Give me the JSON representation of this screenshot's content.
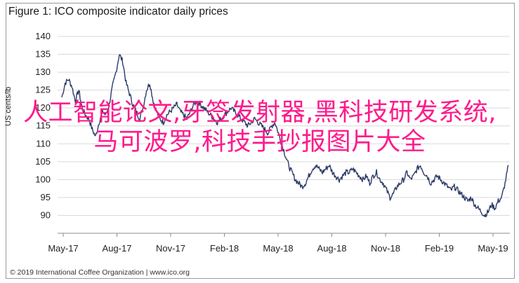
{
  "header": {
    "title": "Figure 1: ICO composite indicator daily prices"
  },
  "footer": {
    "copyright": "© 2019 International Coffee Organization | www.ico.org"
  },
  "overlay": {
    "text": "人工智能论文,牙签发射器,黑科技研发系统,马可波罗,科技手抄报图片大全"
  },
  "colors": {
    "line": "#2b3a67",
    "grid": "#d9d9d9",
    "overlay": "#ff1a8c"
  },
  "chart_data": {
    "type": "line",
    "title": "Figure 1: ICO composite indicator daily prices",
    "ylabel": "US cents/lb",
    "xlabel": "",
    "ylim": [
      85,
      140
    ],
    "yticks": [
      90,
      95,
      100,
      105,
      110,
      115,
      120,
      125,
      130,
      135,
      140
    ],
    "xtick_labels": [
      "May-17",
      "Aug-17",
      "Nov-17",
      "Feb-18",
      "May-18",
      "Aug-18",
      "Nov-18",
      "Feb-19",
      "May-19"
    ],
    "grid": true,
    "series": [
      {
        "values": [
          123,
          127,
          128,
          126,
          122,
          125,
          120,
          118,
          117,
          114,
          112,
          116,
          119,
          118,
          121,
          126,
          130,
          135,
          133,
          127,
          124,
          121,
          119,
          117,
          120,
          125,
          127,
          122,
          119,
          117,
          116,
          118,
          119,
          120,
          121,
          119,
          118,
          117,
          119,
          121,
          122,
          121,
          120,
          119,
          118,
          117,
          116,
          117,
          118,
          119,
          120,
          119,
          118,
          117,
          116,
          115,
          116,
          117,
          116,
          115,
          114,
          113,
          115,
          116,
          113,
          110,
          107,
          104,
          102,
          100,
          99,
          98,
          99,
          101,
          103,
          104,
          103,
          102,
          103,
          104,
          102,
          101,
          100,
          101,
          102,
          102,
          103,
          102,
          101,
          100,
          101,
          99,
          101,
          102,
          100,
          99,
          97,
          95,
          96,
          98,
          99,
          100,
          102,
          100,
          101,
          103,
          104,
          102,
          101,
          99,
          100,
          101,
          100,
          99,
          98,
          97,
          98,
          97,
          96,
          95,
          94,
          95,
          93,
          92,
          91,
          90,
          91,
          93,
          92,
          94,
          95,
          99,
          104
        ]
      }
    ]
  }
}
